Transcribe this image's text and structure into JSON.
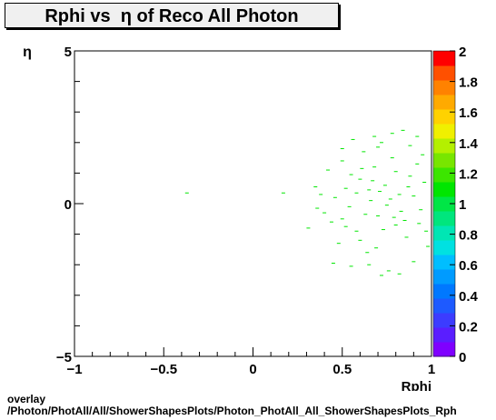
{
  "chart_data": {
    "type": "heatmap",
    "title": "Rphi vs  η of Reco All Photon",
    "xlabel": "Rphi",
    "ylabel": "η",
    "xlim": [
      -1,
      1
    ],
    "ylim": [
      -5,
      5
    ],
    "x_ticks": [
      "−1",
      "−0.5",
      "0",
      "0.5",
      "1"
    ],
    "y_ticks": [
      "−5",
      "0",
      "5"
    ],
    "zlim": [
      0,
      2
    ],
    "z_ticks": [
      "0",
      "0.2",
      "0.4",
      "0.6",
      "0.8",
      "1",
      "1.2",
      "1.4",
      "1.6",
      "1.8",
      "2"
    ],
    "palette": [
      "#7f00ff",
      "#5a1eff",
      "#3c3cff",
      "#1e5aff",
      "#0078ff",
      "#009bff",
      "#00beff",
      "#00e1e1",
      "#00e6b4",
      "#00e67d",
      "#00e646",
      "#00e600",
      "#3ce600",
      "#78e600",
      "#b4f000",
      "#f0f000",
      "#ffd200",
      "#ffaa00",
      "#ff8200",
      "#ff5000",
      "#ff0000"
    ],
    "entry_color": "#00e600",
    "points": [
      [
        -0.37,
        0.35
      ],
      [
        0.17,
        0.35
      ],
      [
        0.31,
        -0.8
      ],
      [
        0.35,
        0.55
      ],
      [
        0.38,
        0.3
      ],
      [
        0.4,
        -0.3
      ],
      [
        0.42,
        1.1
      ],
      [
        0.44,
        -0.6
      ],
      [
        0.46,
        0.2
      ],
      [
        0.48,
        -1.3
      ],
      [
        0.5,
        1.4
      ],
      [
        0.52,
        0.5
      ],
      [
        0.54,
        -0.1
      ],
      [
        0.56,
        2.1
      ],
      [
        0.58,
        -0.9
      ],
      [
        0.6,
        0.8
      ],
      [
        0.62,
        1.7
      ],
      [
        0.64,
        -1.6
      ],
      [
        0.66,
        0.1
      ],
      [
        0.68,
        1.2
      ],
      [
        0.7,
        -0.4
      ],
      [
        0.72,
        2.0
      ],
      [
        0.74,
        0.6
      ],
      [
        0.76,
        -2.2
      ],
      [
        0.78,
        1.5
      ],
      [
        0.8,
        -0.7
      ],
      [
        0.82,
        0.3
      ],
      [
        0.84,
        2.4
      ],
      [
        0.86,
        -1.1
      ],
      [
        0.88,
        0.9
      ],
      [
        0.9,
        -1.9
      ],
      [
        0.92,
        1.3
      ],
      [
        0.94,
        -0.2
      ],
      [
        0.96,
        0.7
      ],
      [
        0.98,
        -1.4
      ],
      [
        0.5,
        -0.5
      ],
      [
        0.55,
        0.95
      ],
      [
        0.6,
        -1.2
      ],
      [
        0.65,
        0.45
      ],
      [
        0.7,
        1.85
      ],
      [
        0.75,
        -0.05
      ],
      [
        0.8,
        1.05
      ],
      [
        0.85,
        -0.55
      ],
      [
        0.9,
        0.25
      ],
      [
        0.95,
        1.6
      ],
      [
        0.63,
        -0.35
      ],
      [
        0.67,
        0.75
      ],
      [
        0.73,
        -0.85
      ],
      [
        0.77,
        0.15
      ],
      [
        0.83,
        -0.25
      ],
      [
        0.87,
        0.55
      ],
      [
        0.93,
        -0.65
      ],
      [
        0.58,
        0.35
      ],
      [
        0.71,
        0.4
      ],
      [
        0.79,
        -0.45
      ],
      [
        0.82,
        -2.3
      ],
      [
        0.72,
        -2.35
      ],
      [
        0.65,
        -2.0
      ],
      [
        0.55,
        -2.05
      ],
      [
        0.45,
        -1.95
      ],
      [
        0.88,
        1.9
      ],
      [
        0.92,
        2.2
      ],
      [
        0.78,
        2.3
      ],
      [
        0.68,
        2.2
      ],
      [
        0.5,
        1.8
      ],
      [
        0.36,
        -0.15
      ],
      [
        0.52,
        -0.75
      ],
      [
        0.61,
        1.15
      ],
      [
        0.69,
        -1.45
      ],
      [
        0.97,
        -0.9
      ]
    ]
  }
}
